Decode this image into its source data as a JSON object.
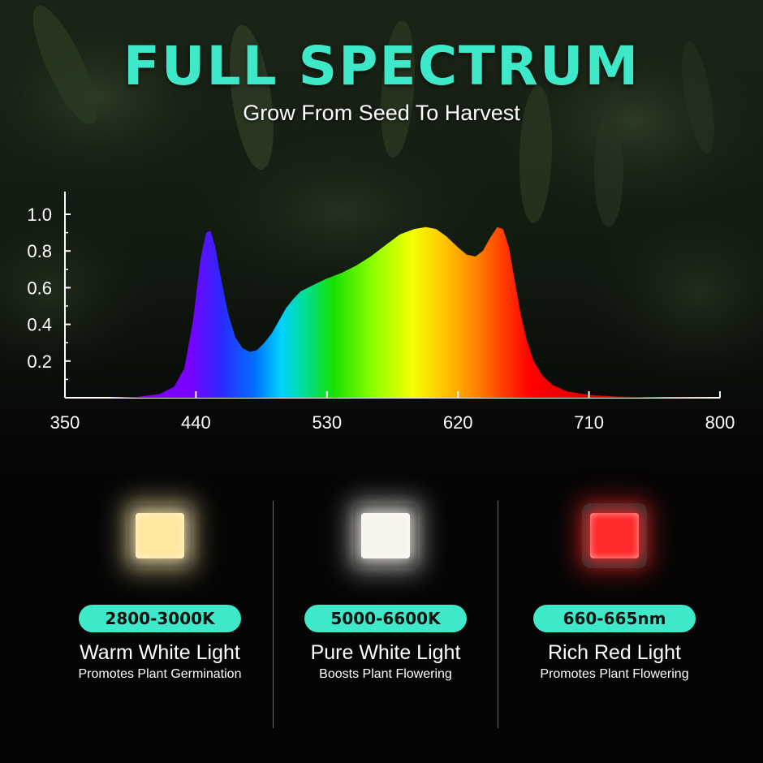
{
  "header": {
    "title": "FULL SPECTRUM",
    "subtitle": "Grow From Seed To Harvest"
  },
  "chart_data": {
    "type": "area",
    "title": "",
    "xlabel": "",
    "ylabel": "",
    "xlim": [
      350,
      800
    ],
    "ylim": [
      0,
      1.0
    ],
    "x_ticks": [
      "350",
      "440",
      "530",
      "620",
      "710",
      "800"
    ],
    "y_ticks": [
      "1.0",
      "0.8",
      "0.6",
      "0.4",
      "0.2"
    ],
    "grid": false,
    "series": [
      {
        "x": [
          350,
          380,
          400,
          415,
          425,
          432,
          438,
          443,
          447,
          450,
          453,
          457,
          462,
          467,
          472,
          477,
          482,
          487,
          492,
          497,
          502,
          507,
          512,
          517,
          522,
          530,
          540,
          550,
          560,
          570,
          580,
          590,
          598,
          605,
          612,
          620,
          626,
          632,
          637,
          642,
          647,
          651,
          655,
          659,
          663,
          667,
          672,
          678,
          685,
          695,
          710,
          730,
          760,
          800
        ],
        "y": [
          0,
          0,
          0.005,
          0.02,
          0.06,
          0.16,
          0.42,
          0.75,
          0.9,
          0.91,
          0.83,
          0.66,
          0.46,
          0.33,
          0.27,
          0.25,
          0.26,
          0.3,
          0.35,
          0.42,
          0.49,
          0.54,
          0.58,
          0.6,
          0.62,
          0.65,
          0.68,
          0.72,
          0.77,
          0.83,
          0.89,
          0.92,
          0.93,
          0.92,
          0.88,
          0.82,
          0.78,
          0.77,
          0.8,
          0.87,
          0.93,
          0.92,
          0.82,
          0.64,
          0.46,
          0.32,
          0.2,
          0.12,
          0.07,
          0.035,
          0.015,
          0.006,
          0.002,
          0
        ]
      }
    ]
  },
  "led_types": [
    {
      "badge": "2800-3000K",
      "name": "Warm White Light",
      "description": "Promotes Plant Germination",
      "color": "#ffe7a0"
    },
    {
      "badge": "5000-6600K",
      "name": "Pure White Light",
      "description": "Boosts Plant Flowering",
      "color": "#f7f4ec"
    },
    {
      "badge": "660-665nm",
      "name": "Rich Red Light",
      "description": "Promotes Plant Flowering",
      "color": "#ff2a2a"
    }
  ],
  "colors": {
    "accent": "#3ee9c9",
    "background": "#050505"
  }
}
